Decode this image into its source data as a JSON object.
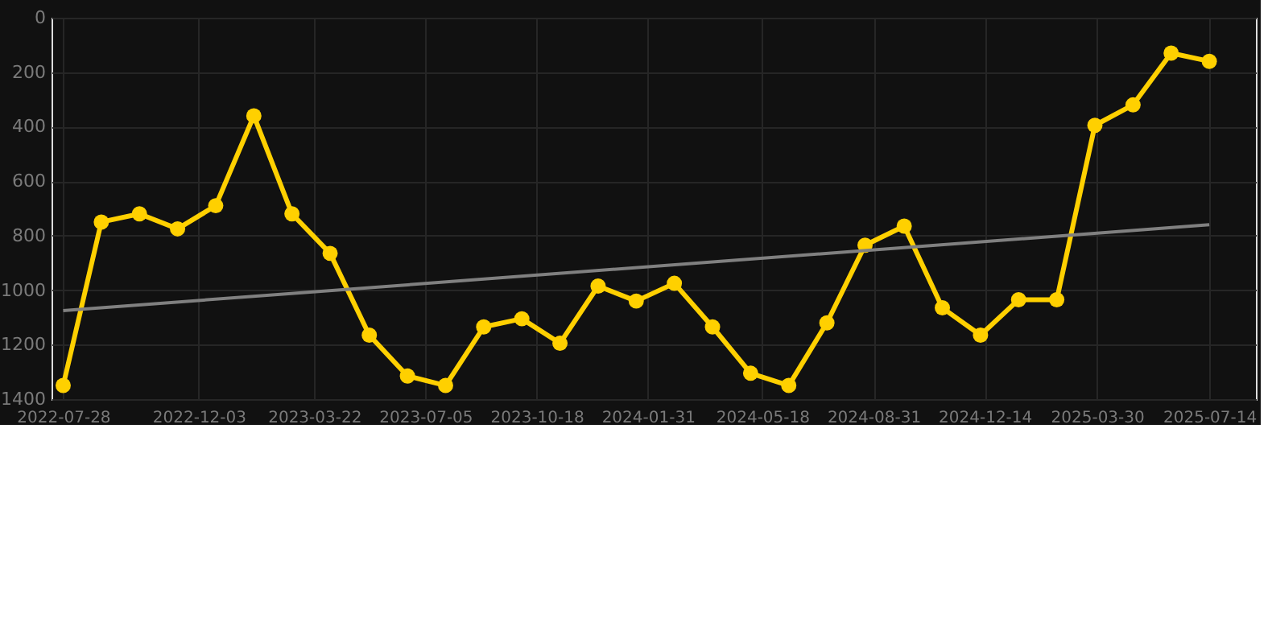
{
  "chart_data": {
    "type": "line",
    "x": [
      "2022-07-28",
      "2022-09-02",
      "2022-10-08",
      "2022-11-13",
      "2022-12-19",
      "2023-01-24",
      "2023-03-01",
      "2023-04-06",
      "2023-05-13",
      "2023-06-18",
      "2023-07-24",
      "2023-08-29",
      "2023-10-04",
      "2023-11-09",
      "2023-12-15",
      "2024-01-20",
      "2024-02-25",
      "2024-04-01",
      "2024-05-07",
      "2024-06-12",
      "2024-07-18",
      "2024-08-23",
      "2024-09-29",
      "2024-11-04",
      "2024-12-10",
      "2025-01-15",
      "2025-02-20",
      "2025-03-28",
      "2025-05-03",
      "2025-06-08",
      "2025-07-14"
    ],
    "series": [
      {
        "color": "#ffd000",
        "marker": "circle",
        "values": [
          1350,
          750,
          720,
          775,
          690,
          360,
          720,
          865,
          1165,
          1315,
          1350,
          1135,
          1105,
          1195,
          985,
          1040,
          975,
          1135,
          1305,
          1350,
          1120,
          835,
          765,
          1065,
          1165,
          1035,
          1035,
          395,
          320,
          130,
          160
        ]
      },
      {
        "type": "line",
        "color": "#808080",
        "marker": "none",
        "x": [
          "2022-07-28",
          "2025-07-14"
        ],
        "values": [
          1075,
          760
        ]
      }
    ],
    "xlim": [
      "2022-07-17",
      "2025-08-27"
    ],
    "xticks": [
      "2022-07-28",
      "2022-12-03",
      "2023-03-22",
      "2023-07-05",
      "2023-10-18",
      "2024-01-31",
      "2024-05-18",
      "2024-08-31",
      "2024-12-14",
      "2025-03-30",
      "2025-07-14"
    ],
    "ylim": [
      1400,
      0
    ],
    "yticks": [
      0,
      200,
      400,
      600,
      800,
      1000,
      1200,
      1400
    ],
    "grid": true,
    "line_style": "solid"
  }
}
